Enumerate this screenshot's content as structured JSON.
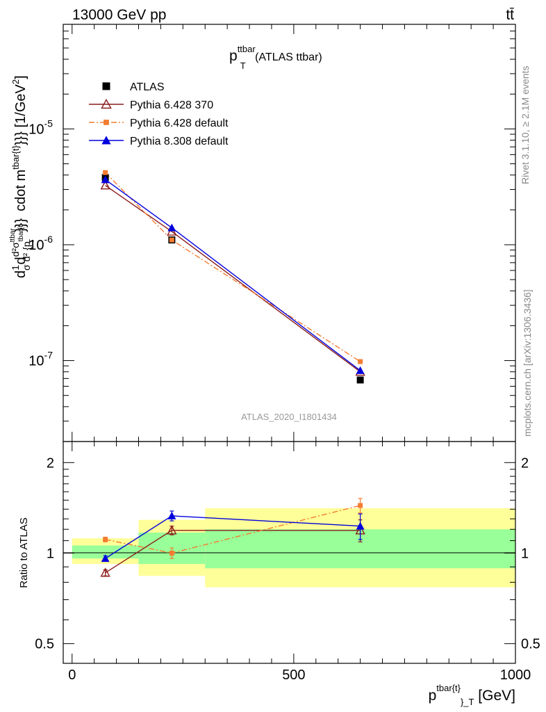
{
  "header": {
    "process": "13000 GeV pp",
    "final_state": "tt̄"
  },
  "side_labels": {
    "rivet": "Rivet 3.1.10, ≥ 2.1M events",
    "mcplots": "mcplots.cern.ch [arXiv:1306.3436]"
  },
  "watermark": "ATLAS_2020_I1801434",
  "chart_data": [
    {
      "type": "line",
      "panel": "main",
      "title": {
        "main": "p",
        "sup": "ttbar",
        "sub": "T",
        "rest": " (ATLAS ttbar)"
      },
      "ylabel": "d1/σ d d²σ^ttbar / d² {p^tbar{t}_T}}} cdot m^tbar{t}}}} [1/GeV²]",
      "yscale": "log",
      "ylim": [
        2e-08,
        8e-05
      ],
      "xlim": [
        -20,
        1000
      ],
      "ytick_labels": [
        "10^-7",
        "10^-6",
        "10^-5"
      ],
      "legend_position": "top-left",
      "legend": [
        {
          "label": "ATLAS",
          "color": "#000000",
          "marker": "square-filled",
          "style": "none"
        },
        {
          "label": "Pythia 6.428 370",
          "color": "#8b1a1a",
          "marker": "triangle-open",
          "style": "solid"
        },
        {
          "label": "Pythia 6.428 default",
          "color": "#f47c30",
          "marker": "square-small",
          "style": "dashdot"
        },
        {
          "label": "Pythia 8.308 default",
          "color": "#0000dd",
          "marker": "triangle-filled",
          "style": "solid"
        }
      ],
      "x": [
        75,
        225,
        650
      ],
      "x_bins": [
        [
          0,
          150
        ],
        [
          150,
          300
        ],
        [
          300,
          1000
        ]
      ],
      "series": [
        {
          "name": "ATLAS",
          "values": [
            3.8e-06,
            1.1e-06,
            6.8e-08
          ]
        },
        {
          "name": "Pythia 6.428 370",
          "values": [
            3.25e-06,
            1.3e-06,
            8e-08
          ]
        },
        {
          "name": "Pythia 6.428 default",
          "values": [
            4.2e-06,
            1.1e-06,
            9.8e-08
          ]
        },
        {
          "name": "Pythia 8.308 default",
          "values": [
            3.65e-06,
            1.4e-06,
            8.2e-08
          ]
        }
      ]
    },
    {
      "type": "line",
      "panel": "ratio",
      "ylabel": "Ratio to ATLAS",
      "xlabel": {
        "main": "p",
        "sup": "tbar{t}",
        "sub": "}_T",
        "rest": " [GeV]"
      },
      "yscale": "log",
      "ylim": [
        0.43,
        2.35
      ],
      "xlim": [
        -20,
        1000
      ],
      "ytick_labels": [
        "0.5",
        "1",
        "2"
      ],
      "xtick_labels": [
        "0",
        "500",
        "1000"
      ],
      "x": [
        75,
        225,
        650
      ],
      "bands": {
        "bins": [
          [
            0,
            150
          ],
          [
            150,
            300
          ],
          [
            300,
            1000
          ]
        ],
        "yellow": [
          [
            0.92,
            1.12
          ],
          [
            0.84,
            1.29
          ],
          [
            0.77,
            1.41
          ]
        ],
        "green": [
          [
            0.96,
            1.06
          ],
          [
            0.92,
            1.17
          ],
          [
            0.89,
            1.2
          ]
        ]
      },
      "series": [
        {
          "name": "Pythia 6.428 370",
          "values": [
            0.86,
            1.19,
            1.19
          ],
          "errors": [
            0.02,
            0.04,
            0.1
          ]
        },
        {
          "name": "Pythia 6.428 default",
          "values": [
            1.11,
            1.0,
            1.44
          ],
          "errors": [
            0.02,
            0.04,
            0.08
          ]
        },
        {
          "name": "Pythia 8.308 default",
          "values": [
            0.96,
            1.33,
            1.23
          ],
          "errors": [
            0.02,
            0.05,
            0.12
          ]
        }
      ]
    }
  ]
}
